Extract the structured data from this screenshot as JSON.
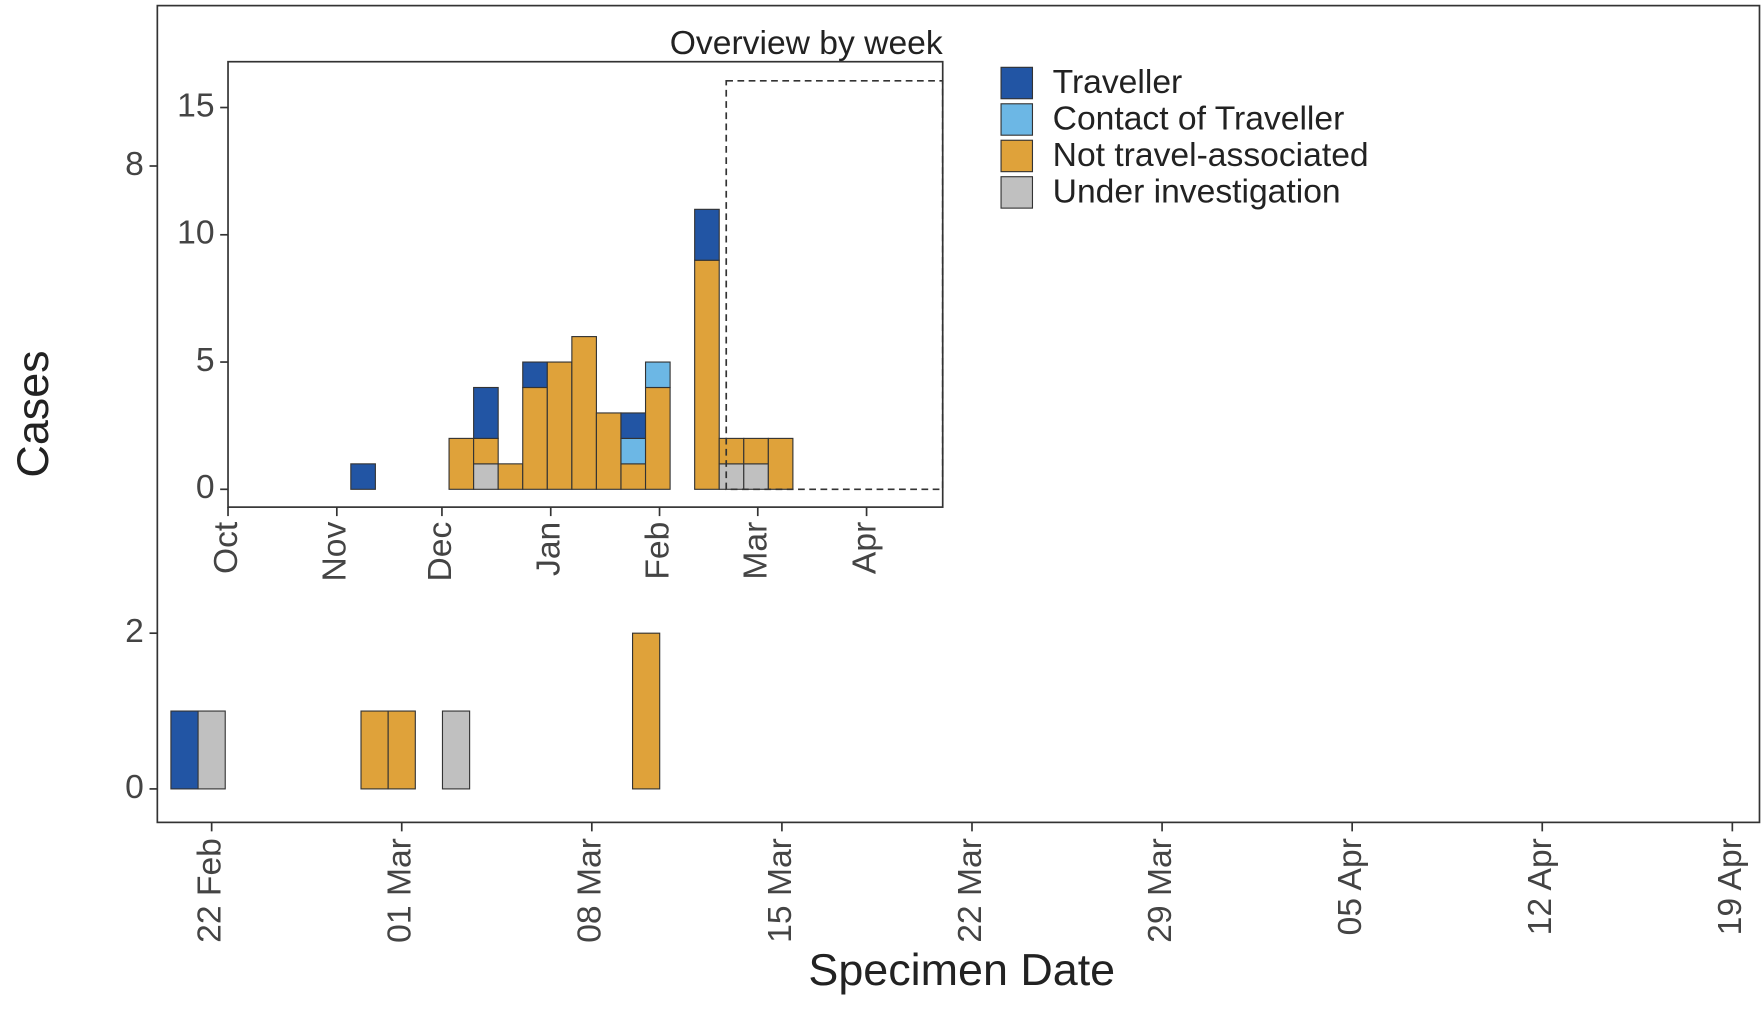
{
  "chart_data": [
    {
      "type": "bar",
      "stacked": true,
      "x_label": "Specimen Date",
      "y_label": "Cases",
      "x": [
        "21 Feb",
        "22 Feb",
        "28 Feb",
        "01 Mar",
        "03 Mar",
        "10 Mar"
      ],
      "series": [
        {
          "name": "Traveller",
          "color": "#2255a4",
          "values": [
            1,
            0,
            0,
            0,
            0,
            0
          ]
        },
        {
          "name": "Contact of Traveller",
          "color": "#6cb7e5",
          "values": [
            0,
            0,
            0,
            0,
            0,
            0
          ]
        },
        {
          "name": "Not travel-associated",
          "color": "#dfa23a",
          "values": [
            0,
            0,
            1,
            1,
            0,
            2
          ]
        },
        {
          "name": "Under investigation",
          "color": "#c0c0c0",
          "values": [
            0,
            1,
            0,
            0,
            1,
            0
          ]
        }
      ],
      "xlim": [
        "20 Feb",
        "20 Apr"
      ],
      "xticks": [
        "22 Feb",
        "01 Mar",
        "08 Mar",
        "15 Mar",
        "22 Mar",
        "29 Mar",
        "05 Apr",
        "12 Apr",
        "19 Apr"
      ],
      "ylim": [
        -0.43,
        10.06
      ],
      "yticks": [
        0,
        2,
        8
      ]
    },
    {
      "type": "bar",
      "stacked": true,
      "title": "Overview by week",
      "x": [
        5.5,
        9.5,
        10.5,
        11.5,
        12.5,
        13.5,
        14.5,
        15.5,
        16.5,
        17.5,
        19.5,
        20.5,
        21.5,
        22.5
      ],
      "series": [
        {
          "color": "#2255a4",
          "values": [
            1,
            0,
            2,
            0,
            1,
            0,
            0,
            0,
            1,
            0,
            2,
            0,
            0,
            0
          ]
        },
        {
          "color": "#6cb7e5",
          "values": [
            0,
            0,
            0,
            0,
            0,
            0,
            0,
            0,
            1,
            1,
            0,
            0,
            0,
            0
          ]
        },
        {
          "color": "#dfa23a",
          "values": [
            0,
            2,
            1,
            1,
            4,
            5,
            6,
            3,
            1,
            4,
            9,
            1,
            1,
            2
          ]
        },
        {
          "color": "#c0c0c0",
          "values": [
            0,
            0,
            1,
            0,
            0,
            0,
            0,
            0,
            0,
            0,
            0,
            1,
            1,
            0
          ]
        }
      ],
      "xlim": [
        0,
        29.1
      ],
      "xticks": [
        {
          "value": 0,
          "label": "Oct"
        },
        {
          "value": 4.43,
          "label": "Nov"
        },
        {
          "value": 8.71,
          "label": "Dec"
        },
        {
          "value": 13.14,
          "label": "Jan"
        },
        {
          "value": 17.57,
          "label": "Feb"
        },
        {
          "value": 21.57,
          "label": "Mar"
        },
        {
          "value": 26,
          "label": "Apr"
        }
      ],
      "ylim": [
        -0.7,
        16.8
      ],
      "yticks": [
        0,
        5,
        10,
        15
      ]
    }
  ]
}
